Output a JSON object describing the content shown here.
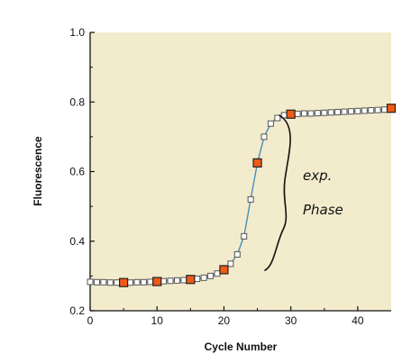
{
  "chart_data": {
    "type": "line",
    "xlabel": "Cycle Number",
    "ylabel": "Fluorescence",
    "xlim": [
      0,
      45
    ],
    "ylim": [
      0.2,
      1.0
    ],
    "xticks": [
      "0",
      "10",
      "20",
      "30",
      "40"
    ],
    "xtick_values": [
      0,
      10,
      20,
      30,
      40
    ],
    "yticks": [
      "0.2",
      "0.4",
      "0.6",
      "0.8",
      "1.0"
    ],
    "ytick_values": [
      0.2,
      0.4,
      0.6,
      0.8,
      1.0
    ],
    "grid": false,
    "series": [
      {
        "x": [
          0,
          1,
          2,
          3,
          4,
          5,
          6,
          7,
          8,
          9,
          10,
          11,
          12,
          13,
          14,
          15,
          16,
          17,
          18,
          19,
          20,
          21,
          22,
          23,
          24,
          25,
          26,
          27,
          28,
          29,
          30,
          31,
          32,
          33,
          34,
          35,
          36,
          37,
          38,
          39,
          40,
          41,
          42,
          43,
          44,
          45
        ],
        "values": [
          0.283,
          0.282,
          0.282,
          0.281,
          0.281,
          0.281,
          0.281,
          0.282,
          0.282,
          0.283,
          0.284,
          0.285,
          0.286,
          0.287,
          0.288,
          0.29,
          0.292,
          0.295,
          0.3,
          0.307,
          0.318,
          0.335,
          0.362,
          0.414,
          0.52,
          0.625,
          0.7,
          0.738,
          0.754,
          0.762,
          0.765,
          0.766,
          0.767,
          0.767,
          0.768,
          0.769,
          0.77,
          0.771,
          0.772,
          0.773,
          0.774,
          0.775,
          0.776,
          0.777,
          0.778,
          0.782
        ],
        "color": "#4a8fb8",
        "marker_fill": "#ffffff",
        "marker_stroke": "#555555"
      }
    ],
    "highlighted_points": {
      "x": [
        5,
        10,
        15,
        20,
        25,
        30,
        45
      ],
      "values": [
        0.281,
        0.284,
        0.29,
        0.318,
        0.625,
        0.765,
        0.782
      ],
      "color": "#f05a14"
    },
    "plot_background": "#f2ebcc",
    "annotation": {
      "text_line1": "exp.",
      "text_line2": "Phase"
    }
  }
}
